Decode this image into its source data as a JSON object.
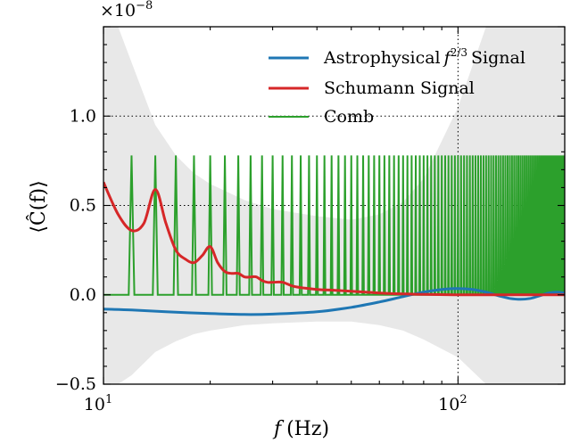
{
  "chart_data": {
    "type": "line",
    "multiplier": "×10",
    "multiplier_exp": "−8",
    "xlabel_var": "f",
    "xlabel_unit": "(Hz)",
    "ylabel": "⟨Ĉ(f)⟩",
    "xscale": "log",
    "xlim": [
      10,
      200
    ],
    "ylim": [
      -0.5,
      1.5
    ],
    "grid": "dotted",
    "legend_position": "top-right",
    "x_ticks": [
      {
        "value": 10,
        "base": "10",
        "exp": "1"
      },
      {
        "value": 100,
        "base": "10",
        "exp": "2"
      }
    ],
    "y_ticks": [
      {
        "value": -0.5,
        "label": "−0.5"
      },
      {
        "value": 0.0,
        "label": "0.0"
      },
      {
        "value": 0.5,
        "label": "0.5"
      },
      {
        "value": 1.0,
        "label": "1.0"
      }
    ],
    "gridlines": {
      "x": [
        100
      ],
      "y": [
        0.5,
        1.0
      ]
    },
    "series": [
      {
        "name": "Astrophysical f^{2/3} Signal",
        "legend_prefix": "Astrophysical",
        "legend_var": "f",
        "legend_exp": "2/3",
        "legend_suffix": "Signal",
        "color": "#1f77b4",
        "x": [
          10,
          12,
          15,
          20,
          25,
          30,
          40,
          50,
          60,
          70,
          80,
          90,
          100,
          110,
          120,
          130,
          140,
          150,
          160,
          170,
          180,
          190,
          200
        ],
        "y": [
          -0.08,
          -0.085,
          -0.095,
          -0.105,
          -0.11,
          -0.108,
          -0.095,
          -0.07,
          -0.04,
          -0.01,
          0.015,
          0.03,
          0.035,
          0.03,
          0.015,
          -0.005,
          -0.02,
          -0.025,
          -0.02,
          -0.005,
          0.01,
          0.015,
          0.01
        ]
      },
      {
        "name": "Schumann Signal",
        "legend_prefix": "Schumann Signal",
        "color": "#d62728",
        "x": [
          10,
          11,
          12,
          13,
          14,
          15,
          16,
          17,
          18,
          19,
          20,
          21,
          22,
          23,
          24,
          25,
          26,
          27,
          28,
          29,
          30,
          32,
          34,
          36,
          38,
          40,
          45,
          50,
          60,
          70,
          80,
          100,
          150,
          200
        ],
        "y": [
          0.63,
          0.45,
          0.36,
          0.4,
          0.59,
          0.4,
          0.25,
          0.2,
          0.18,
          0.22,
          0.27,
          0.18,
          0.13,
          0.12,
          0.12,
          0.1,
          0.1,
          0.1,
          0.08,
          0.07,
          0.07,
          0.07,
          0.05,
          0.04,
          0.035,
          0.03,
          0.025,
          0.02,
          0.01,
          0.005,
          0.002,
          0.0,
          0.0,
          0.0
        ]
      },
      {
        "name": "Comb",
        "legend_prefix": "Comb",
        "color": "#2ca02c",
        "comb_spacing": 2,
        "comb_start": 12,
        "comb_end": 200,
        "peak": 0.78,
        "baseline": 0.0
      }
    ],
    "uncertainty_band": {
      "color": "#e8e8e8",
      "x": [
        10,
        11,
        12,
        14,
        16,
        18,
        20,
        25,
        30,
        40,
        50,
        60,
        70,
        80,
        100,
        120,
        150,
        200
      ],
      "upper": [
        1.5,
        1.5,
        1.3,
        0.95,
        0.78,
        0.68,
        0.62,
        0.53,
        0.48,
        0.44,
        0.42,
        0.45,
        0.52,
        0.65,
        1.05,
        1.5,
        1.5,
        1.5
      ],
      "lower": [
        -0.5,
        -0.5,
        -0.45,
        -0.32,
        -0.26,
        -0.22,
        -0.2,
        -0.17,
        -0.16,
        -0.15,
        -0.15,
        -0.17,
        -0.2,
        -0.25,
        -0.35,
        -0.5,
        -0.5,
        -0.5
      ]
    }
  }
}
